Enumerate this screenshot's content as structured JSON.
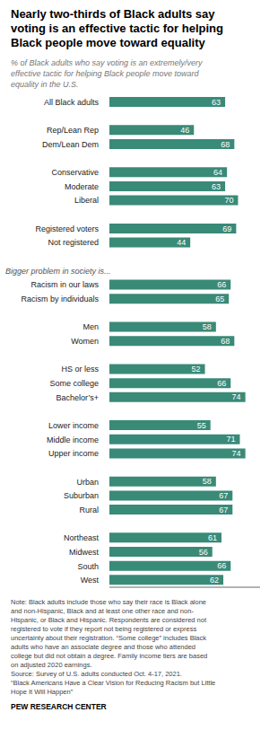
{
  "chart_data": {
    "type": "bar",
    "orientation": "horizontal",
    "title": "Nearly two-thirds of Black adults say\nvoting is an effective tactic for helping\nBlack people move toward equality",
    "subtitle": "% of Black adults who say voting is an extremely/very\neffective tactic for helping Black people move toward\nequality in the U.S.",
    "note": "Note: Black adults include those who say their race is Black alone\nand non-Hispanic, Black and at least one other race and non-\nHispanic, or Black and Hispanic. Respondents are considered not\nregistered to vote if they report not being registered or express\nuncertainty about their registration. “Some college” includes Black\nadults who have an associate degree and those who attended\ncollege but did not obtain a degree. Family income tiers are based\non adjusted 2020 earnings.\nSource: Survey of U.S. adults conducted Oct. 4-17, 2021.\n“Black Americans Have a Clear Vision for Reducing Racism but Little\nHope It Will Happen”",
    "source": "PEW RESEARCH CENTER",
    "categories": [
      "All Black adults",
      null,
      "Rep/Lean Rep",
      "Dem/Lean Dem",
      null,
      "Conservative",
      "Moderate",
      "Liberal",
      null,
      "Registered voters",
      "Not registered",
      null,
      "Bigger problem in society is...",
      "Racism in our laws",
      "Racism by individuals",
      null,
      "Men",
      "Women",
      null,
      "HS or less",
      "Some college",
      "Bachelor’s+",
      null,
      "Lower income",
      "Middle income",
      "Upper income",
      null,
      "Urban",
      "Suburban",
      "Rural",
      null,
      "Northeast",
      "Midwest",
      "South",
      "West"
    ],
    "values": [
      63,
      null,
      46,
      68,
      null,
      64,
      63,
      70,
      null,
      69,
      44,
      null,
      null,
      66,
      65,
      null,
      58,
      68,
      null,
      52,
      66,
      74,
      null,
      55,
      71,
      74,
      null,
      58,
      67,
      67,
      null,
      61,
      56,
      66,
      62
    ],
    "color": "#3a8a78",
    "xlim": [
      0,
      82
    ],
    "data_labels": true,
    "tick_labels": "y",
    "grid": false
  }
}
